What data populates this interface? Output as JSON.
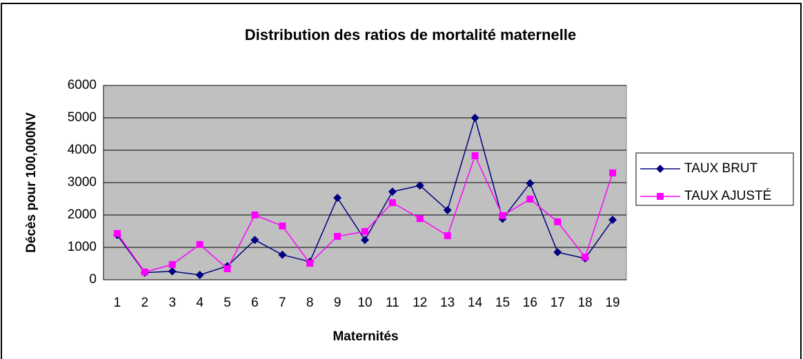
{
  "chart_data": {
    "type": "line",
    "title": "Distribution des ratios de mortalité maternelle",
    "x_label": "Maternités",
    "y_label": "Décès pour 100,000NV",
    "categories": [
      "1",
      "2",
      "3",
      "4",
      "5",
      "6",
      "7",
      "8",
      "9",
      "10",
      "11",
      "12",
      "13",
      "14",
      "15",
      "16",
      "17",
      "18",
      "19"
    ],
    "series": [
      {
        "name": "TAUX BRUT",
        "color": "#000080",
        "marker": "diamond",
        "values": [
          1380,
          220,
          260,
          150,
          420,
          1230,
          770,
          560,
          2530,
          1230,
          2720,
          2910,
          2150,
          5000,
          1880,
          2980,
          850,
          660,
          1850
        ]
      },
      {
        "name": "TAUX AJUSTÉ",
        "color": "#ff00ff",
        "marker": "square",
        "values": [
          1430,
          240,
          470,
          1090,
          340,
          2000,
          1660,
          510,
          1340,
          1490,
          2380,
          1890,
          1360,
          3830,
          1980,
          2490,
          1790,
          700,
          3300
        ]
      }
    ],
    "ylim": [
      0,
      6000
    ],
    "yticks": [
      0,
      1000,
      2000,
      3000,
      4000,
      5000,
      6000
    ],
    "grid": true,
    "legend": "right"
  }
}
